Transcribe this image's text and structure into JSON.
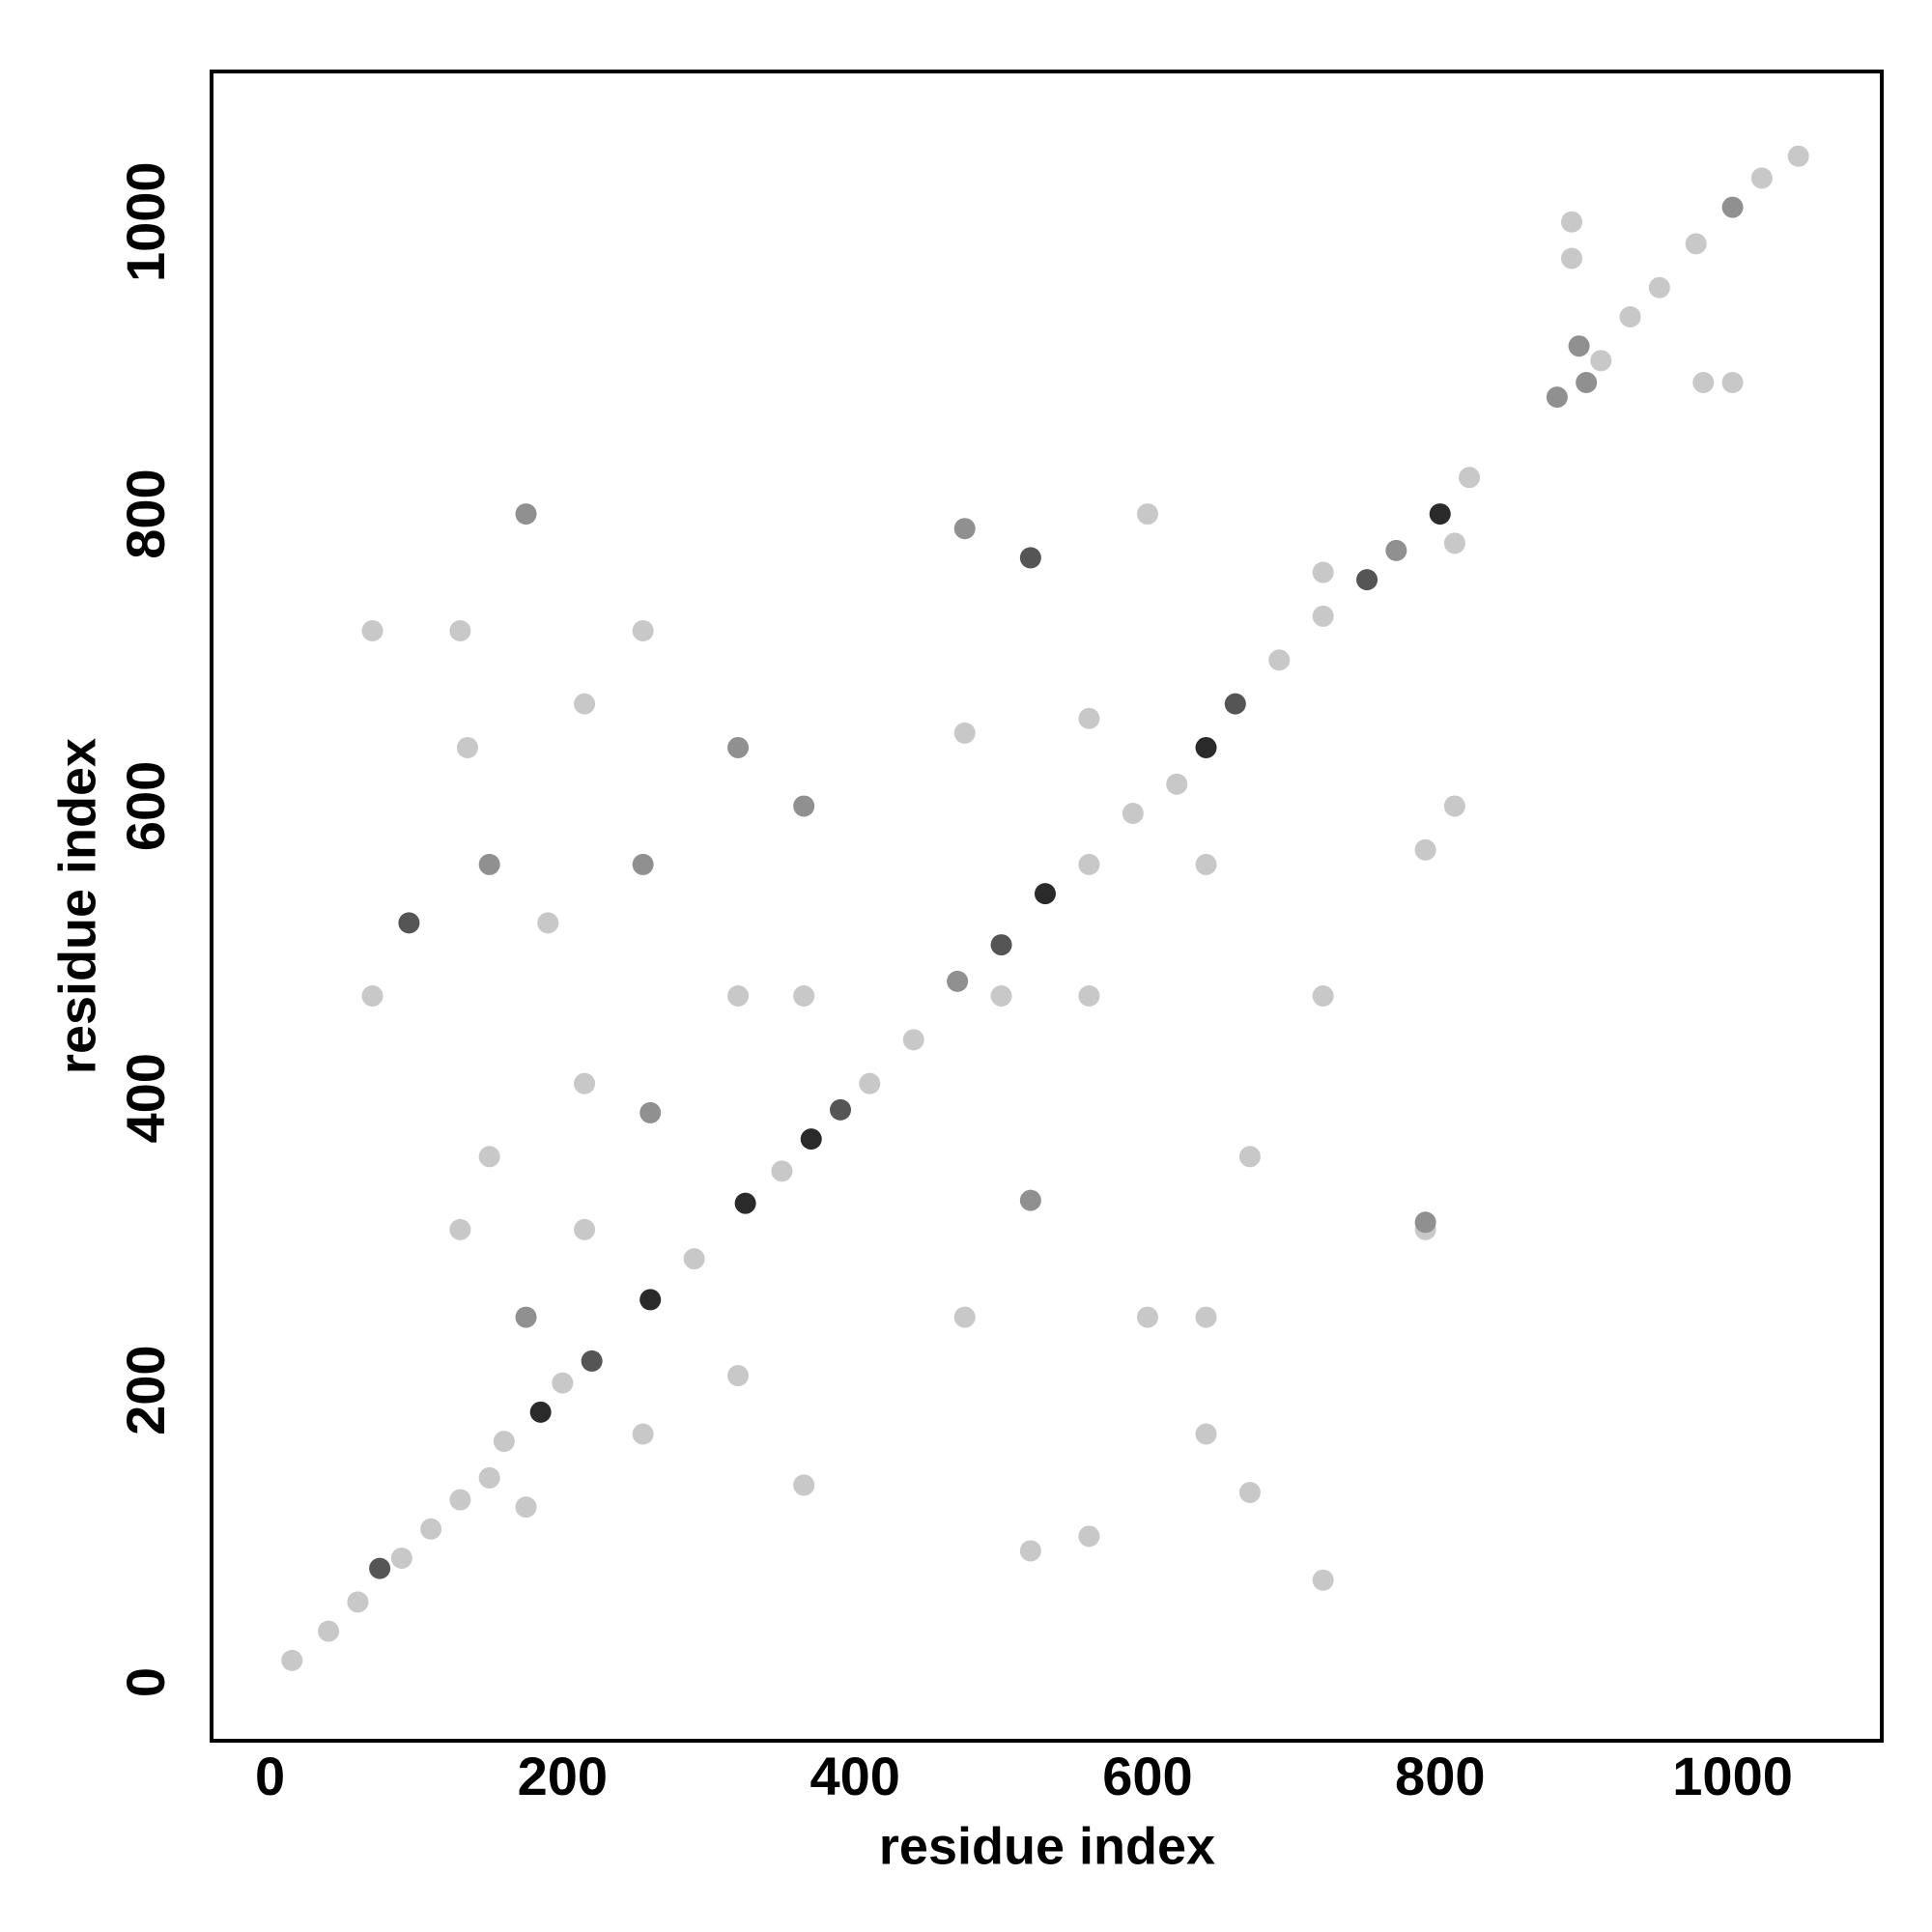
{
  "chart_data": {
    "type": "scatter",
    "xlabel": "residue index",
    "ylabel": "residue index",
    "xlim": [
      -40,
      1102
    ],
    "ylim": [
      -40,
      1103
    ],
    "xticks": [
      0,
      200,
      400,
      600,
      800,
      1000
    ],
    "yticks": [
      0,
      200,
      400,
      600,
      800,
      1000
    ],
    "grid": false,
    "x": [
      15,
      40,
      60,
      75,
      90,
      110,
      130,
      160,
      185,
      200,
      220,
      260,
      290,
      325,
      350,
      370,
      390,
      410,
      440,
      470,
      500,
      530,
      560,
      590,
      620,
      640,
      660,
      690,
      720,
      750,
      770,
      800,
      820,
      880,
      895,
      910,
      930,
      950,
      975,
      1000,
      1020,
      1045,
      70,
      70,
      95,
      130,
      135,
      150,
      150,
      175,
      175,
      190,
      215,
      215,
      255,
      255,
      260,
      320,
      320,
      365,
      365,
      475,
      475,
      500,
      520,
      520,
      560,
      560,
      600,
      600,
      640,
      640,
      670,
      670,
      720,
      720,
      790,
      790,
      810,
      810,
      130,
      150,
      175,
      215,
      255,
      320,
      365,
      475,
      520,
      560,
      640,
      720,
      790,
      890,
      900,
      980,
      1000,
      890
    ],
    "y": [
      15,
      35,
      55,
      78,
      85,
      105,
      125,
      165,
      185,
      205,
      220,
      262,
      290,
      328,
      350,
      372,
      392,
      410,
      440,
      480,
      505,
      540,
      560,
      595,
      615,
      640,
      670,
      700,
      730,
      755,
      775,
      800,
      825,
      880,
      915,
      905,
      935,
      955,
      985,
      1010,
      1030,
      1045,
      720,
      470,
      520,
      720,
      640,
      560,
      360,
      800,
      250,
      520,
      670,
      410,
      560,
      720,
      390,
      640,
      470,
      600,
      470,
      790,
      650,
      470,
      770,
      330,
      660,
      470,
      250,
      800,
      560,
      170,
      360,
      130,
      760,
      470,
      570,
      310,
      780,
      600,
      310,
      140,
      120,
      310,
      170,
      210,
      135,
      250,
      90,
      100,
      250,
      70,
      315,
      975,
      890,
      890,
      890,
      1000
    ],
    "colors": [
      "#c8c8c8",
      "#c8c8c8",
      "#c8c8c8",
      "#555555",
      "#c8c8c8",
      "#c8c8c8",
      "#c8c8c8",
      "#c8c8c8",
      "#2a2a2a",
      "#c8c8c8",
      "#555555",
      "#2a2a2a",
      "#c8c8c8",
      "#2a2a2a",
      "#c8c8c8",
      "#2a2a2a",
      "#555555",
      "#c8c8c8",
      "#c8c8c8",
      "#909090",
      "#555555",
      "#2a2a2a",
      "#c8c8c8",
      "#c8c8c8",
      "#c8c8c8",
      "#2a2a2a",
      "#555555",
      "#c8c8c8",
      "#c8c8c8",
      "#555555",
      "#909090",
      "#2a2a2a",
      "#c8c8c8",
      "#909090",
      "#909090",
      "#c8c8c8",
      "#c8c8c8",
      "#c8c8c8",
      "#c8c8c8",
      "#909090",
      "#c8c8c8",
      "#c8c8c8",
      "#c8c8c8",
      "#c8c8c8",
      "#555555",
      "#c8c8c8",
      "#c8c8c8",
      "#909090",
      "#c8c8c8",
      "#909090",
      "#909090",
      "#c8c8c8",
      "#c8c8c8",
      "#c8c8c8",
      "#909090",
      "#c8c8c8",
      "#909090",
      "#909090",
      "#c8c8c8",
      "#909090",
      "#c8c8c8",
      "#909090",
      "#c8c8c8",
      "#c8c8c8",
      "#555555",
      "#909090",
      "#c8c8c8",
      "#c8c8c8",
      "#c8c8c8",
      "#c8c8c8",
      "#c8c8c8",
      "#c8c8c8",
      "#c8c8c8",
      "#c8c8c8",
      "#c8c8c8",
      "#c8c8c8",
      "#c8c8c8",
      "#c8c8c8",
      "#c8c8c8",
      "#c8c8c8",
      "#c8c8c8",
      "#c8c8c8",
      "#c8c8c8",
      "#c8c8c8",
      "#c8c8c8",
      "#c8c8c8",
      "#c8c8c8",
      "#c8c8c8",
      "#c8c8c8",
      "#c8c8c8",
      "#c8c8c8",
      "#c8c8c8",
      "#909090",
      "#c8c8c8",
      "#909090",
      "#c8c8c8",
      "#c8c8c8",
      "#c8c8c8"
    ]
  }
}
